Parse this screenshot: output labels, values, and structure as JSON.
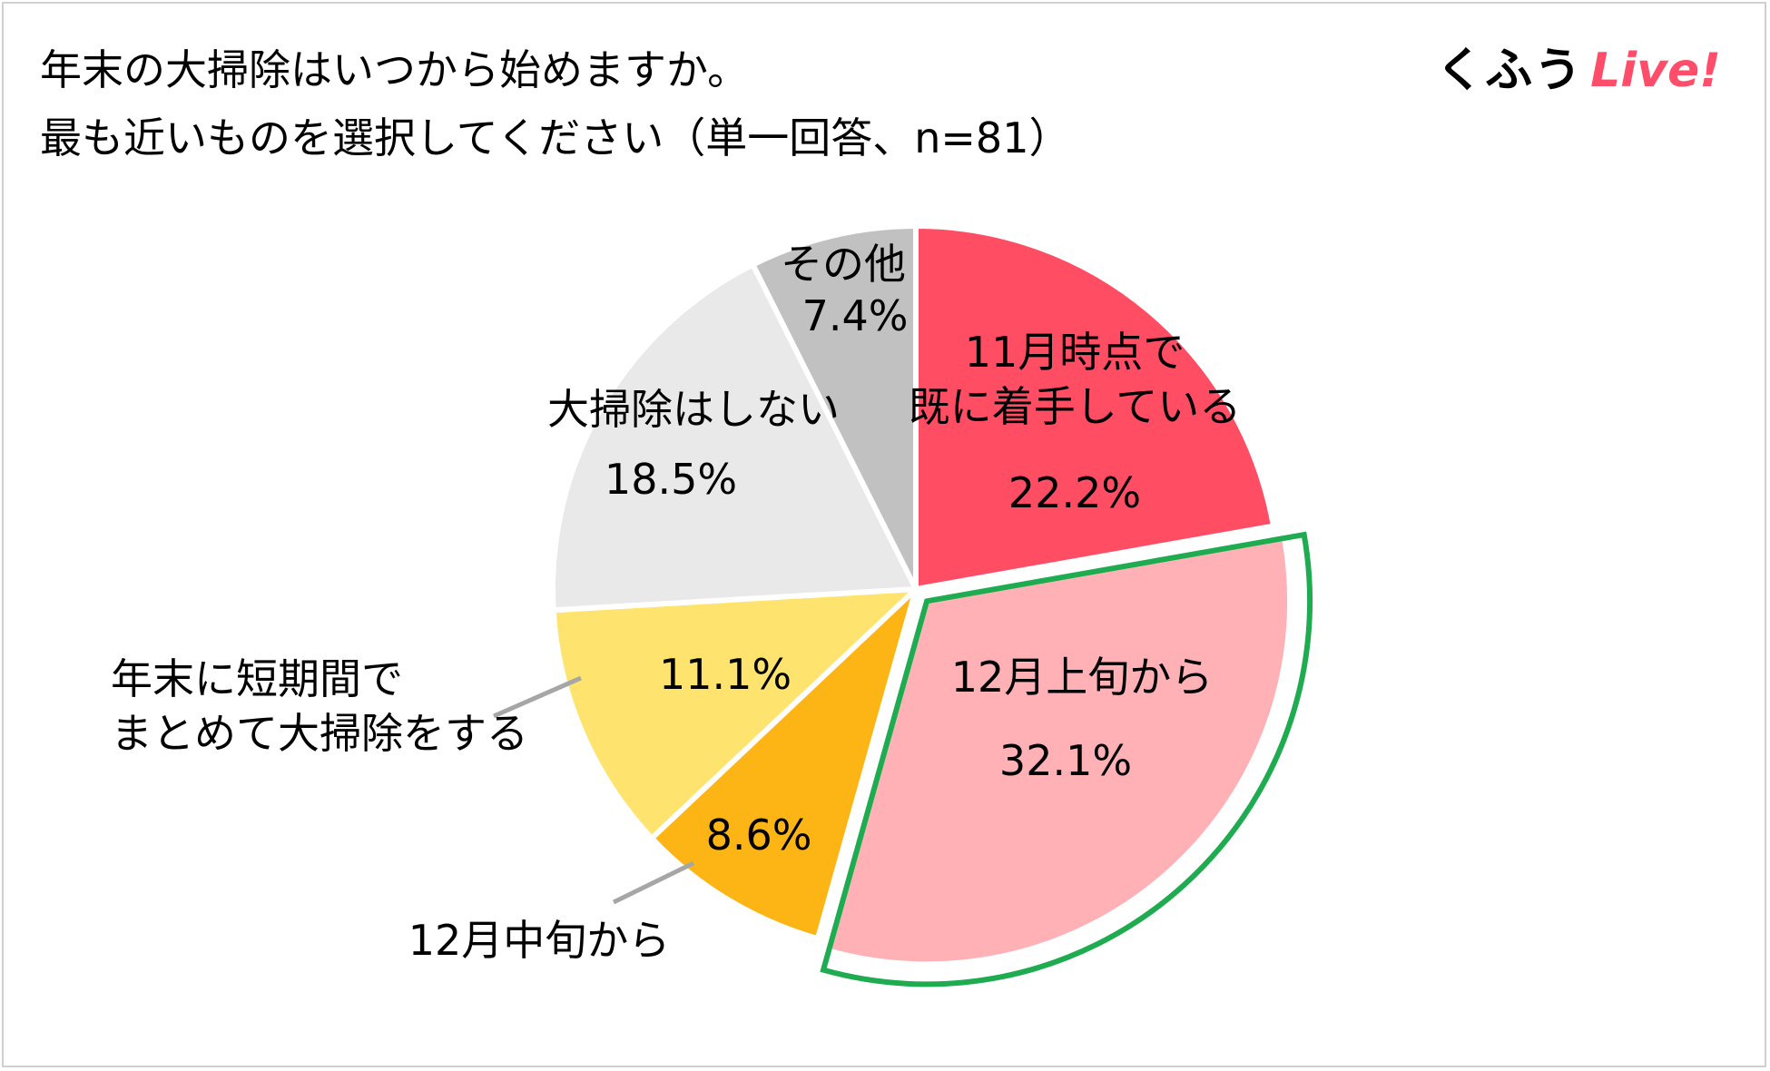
{
  "title_lines": [
    "年末の大掃除はいつから始めますか。",
    "最も近いものを選択してください（単一回答、n=81）"
  ],
  "logo": {
    "part1": "くふう",
    "part2": "Live!"
  },
  "chart_data": {
    "type": "pie",
    "start_angle_deg": 0,
    "direction": "clockwise",
    "slices": [
      {
        "label_lines": [
          "11月時点で",
          "既に着手している"
        ],
        "value_text": "22.2%",
        "value": 22.2,
        "color": "#ff4d63"
      },
      {
        "label_lines": [
          "12月上旬から"
        ],
        "value_text": "32.1%",
        "value": 32.1,
        "color": "#ffb1b5",
        "highlighted": true,
        "highlight_color": "#1fab4f"
      },
      {
        "label_lines": [
          "12月中旬から"
        ],
        "value_text": "8.6%",
        "value": 8.6,
        "color": "#fdb515"
      },
      {
        "label_lines": [
          "年末に短期間で",
          "まとめて大掃除をする"
        ],
        "value_text": "11.1%",
        "value": 11.1,
        "color": "#fee46f"
      },
      {
        "label_lines": [
          "大掃除はしない"
        ],
        "value_text": "18.5%",
        "value": 18.5,
        "color": "#e9e9e9"
      },
      {
        "label_lines": [
          "その他"
        ],
        "value_text": "7.4%",
        "value": 7.4,
        "color": "#c1c1c1"
      }
    ]
  }
}
